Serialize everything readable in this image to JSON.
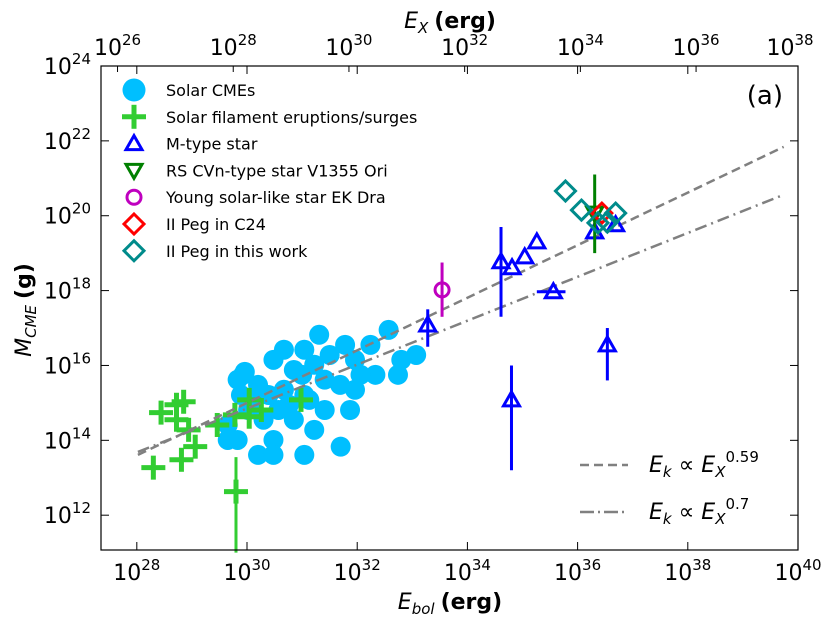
{
  "chart_data": {
    "type": "scatter",
    "panel_label": "(a)",
    "xlabel": {
      "main": "E",
      "sub": "bol",
      "unit": "(erg)"
    },
    "ylabel": {
      "main": "M",
      "sub": "CME",
      "unit": "(g)"
    },
    "top_xlabel": {
      "main": "E",
      "sub": "X",
      "unit": "(erg)"
    },
    "xscale": "log",
    "yscale": "log",
    "xlim_log10": [
      27.35,
      40
    ],
    "ylim_log10": [
      11.07,
      24
    ],
    "x_ticks": [
      {
        "base": "10",
        "exp": "28",
        "v": 28
      },
      {
        "base": "10",
        "exp": "30",
        "v": 30
      },
      {
        "base": "10",
        "exp": "32",
        "v": 32
      },
      {
        "base": "10",
        "exp": "34",
        "v": 34
      },
      {
        "base": "10",
        "exp": "36",
        "v": 36
      },
      {
        "base": "10",
        "exp": "38",
        "v": 38
      },
      {
        "base": "10",
        "exp": "40",
        "v": 40
      }
    ],
    "y_ticks": [
      {
        "base": "10",
        "exp": "12",
        "v": 12
      },
      {
        "base": "10",
        "exp": "14",
        "v": 14
      },
      {
        "base": "10",
        "exp": "16",
        "v": 16
      },
      {
        "base": "10",
        "exp": "18",
        "v": 18
      },
      {
        "base": "10",
        "exp": "20",
        "v": 20
      },
      {
        "base": "10",
        "exp": "22",
        "v": 22
      },
      {
        "base": "10",
        "exp": "24",
        "v": 24
      }
    ],
    "top_x_ticks": [
      {
        "base": "10",
        "exp": "26"
      },
      {
        "base": "10",
        "exp": "28"
      },
      {
        "base": "10",
        "exp": "30"
      },
      {
        "base": "10",
        "exp": "32"
      },
      {
        "base": "10",
        "exp": "34"
      },
      {
        "base": "10",
        "exp": "36"
      },
      {
        "base": "10",
        "exp": "38"
      }
    ],
    "grid": false,
    "legend_placement": "top-left",
    "series": [
      {
        "name": "Solar CMEs",
        "marker": "circle",
        "color": "#00BFFF",
        "points_log10": [
          [
            31.31,
            16.82
          ],
          [
            32.57,
            16.95
          ],
          [
            33.07,
            16.28
          ],
          [
            32.74,
            15.75
          ],
          [
            32.33,
            15.75
          ],
          [
            31.96,
            16.15
          ],
          [
            31.04,
            16.42
          ],
          [
            30.85,
            15.88
          ],
          [
            30.67,
            15.35
          ],
          [
            30.48,
            16.15
          ],
          [
            30.2,
            15.48
          ],
          [
            29.93,
            15.75
          ],
          [
            29.89,
            15.21
          ],
          [
            30.02,
            14.81
          ],
          [
            29.83,
            14.01
          ],
          [
            30.2,
            13.61
          ],
          [
            30.48,
            14.01
          ],
          [
            31.04,
            13.61
          ],
          [
            30.85,
            14.55
          ],
          [
            31.22,
            14.28
          ],
          [
            31.41,
            14.81
          ],
          [
            31.69,
            15.48
          ],
          [
            31.41,
            15.62
          ],
          [
            31.87,
            14.81
          ],
          [
            31.7,
            13.83
          ],
          [
            31.04,
            15.21
          ],
          [
            30.57,
            14.81
          ],
          [
            30.3,
            14.55
          ],
          [
            31.5,
            16.28
          ],
          [
            32.24,
            16.55
          ],
          [
            31.78,
            16.55
          ],
          [
            30.67,
            16.42
          ],
          [
            31.0,
            15.75
          ],
          [
            30.11,
            15.08
          ],
          [
            29.65,
            14.41
          ],
          [
            29.83,
            15.62
          ],
          [
            29.96,
            15.83
          ],
          [
            30.76,
            14.95
          ],
          [
            30.39,
            15.21
          ],
          [
            31.96,
            15.35
          ],
          [
            31.22,
            16.02
          ],
          [
            31.13,
            15.08
          ],
          [
            30.48,
            13.61
          ],
          [
            29.65,
            14.01
          ],
          [
            32.06,
            15.75
          ],
          [
            32.8,
            16.15
          ]
        ]
      },
      {
        "name": "Solar filament eruptions/surges",
        "marker": "plus",
        "color": "#32CD32",
        "points_log10": [
          [
            28.3,
            13.27
          ],
          [
            28.44,
            14.74
          ],
          [
            28.72,
            14.95
          ],
          [
            28.85,
            15.03
          ],
          [
            28.72,
            14.55
          ],
          [
            28.94,
            14.28
          ],
          [
            28.81,
            13.48
          ],
          [
            29.06,
            13.83
          ],
          [
            29.46,
            14.41
          ],
          [
            30.04,
            15.08
          ],
          [
            30.04,
            14.63
          ],
          [
            30.26,
            14.81
          ],
          [
            30.98,
            15.08
          ],
          [
            29.78,
            14.68
          ],
          [
            29.8,
            12.63
          ]
        ],
        "yerr_log10": [
          null,
          null,
          null,
          null,
          null,
          null,
          null,
          null,
          null,
          null,
          null,
          null,
          null,
          null,
          [
            11.0,
            13.55
          ]
        ]
      },
      {
        "name": "M-type star",
        "marker": "triangle-up",
        "color": "#0000FF",
        "points_log10": [
          [
            33.28,
            17.08
          ],
          [
            34.61,
            18.77
          ],
          [
            34.81,
            18.61
          ],
          [
            35.04,
            18.9
          ],
          [
            35.26,
            19.3
          ],
          [
            35.56,
            17.97
          ],
          [
            34.8,
            15.08
          ],
          [
            36.31,
            19.57
          ],
          [
            36.54,
            16.55
          ],
          [
            36.69,
            19.76
          ]
        ],
        "yerr_log10": [
          [
            16.5,
            17.5
          ],
          [
            17.3,
            19.7
          ],
          null,
          null,
          null,
          null,
          [
            13.2,
            16.0
          ],
          null,
          [
            15.6,
            17.0
          ],
          null
        ],
        "xerr_log10": [
          null,
          null,
          null,
          null,
          null,
          [
            35.26,
            35.78
          ],
          null,
          null,
          null,
          null
        ]
      },
      {
        "name": "RS CVn-type star V1355 Ori",
        "marker": "triangle-down",
        "color": "#008000",
        "points_log10": [
          [
            36.31,
            20.07
          ]
        ],
        "yerr_log10": [
          [
            19.0,
            21.1
          ]
        ]
      },
      {
        "name": "Young solar-like star EK Dra",
        "marker": "circle-open",
        "color": "#BF00BF",
        "points_log10": [
          [
            33.54,
            18.02
          ]
        ],
        "yerr_log10": [
          [
            17.3,
            18.75
          ]
        ]
      },
      {
        "name": "II Peg in C24",
        "marker": "diamond",
        "color": "#FF0000",
        "points_log10": [
          [
            36.44,
            20.07
          ]
        ]
      },
      {
        "name": "II Peg in this work",
        "marker": "diamond",
        "color": "#008B8B",
        "points_log10": [
          [
            35.78,
            20.66
          ],
          [
            36.07,
            20.15
          ],
          [
            36.37,
            19.81
          ],
          [
            36.69,
            20.07
          ],
          [
            36.54,
            19.83
          ]
        ]
      }
    ],
    "fits": [
      {
        "style": "dashed",
        "color": "#808080",
        "label": {
          "lhs": "E",
          "lhs_sub": "k",
          "rel": "∝",
          "rhs": "E",
          "rhs_sub": "X",
          "rhs_exp": "0.59"
        },
        "from_log10": [
          28.02,
          13.61
        ],
        "to_log10": [
          39.74,
          21.84
        ]
      },
      {
        "style": "dashdot",
        "color": "#808080",
        "label": {
          "lhs": "E",
          "lhs_sub": "k",
          "rel": "∝",
          "rhs": "E",
          "rhs_sub": "X",
          "rhs_exp": "0.7"
        },
        "from_log10": [
          28.02,
          13.69
        ],
        "to_log10": [
          39.74,
          20.56
        ]
      }
    ]
  }
}
